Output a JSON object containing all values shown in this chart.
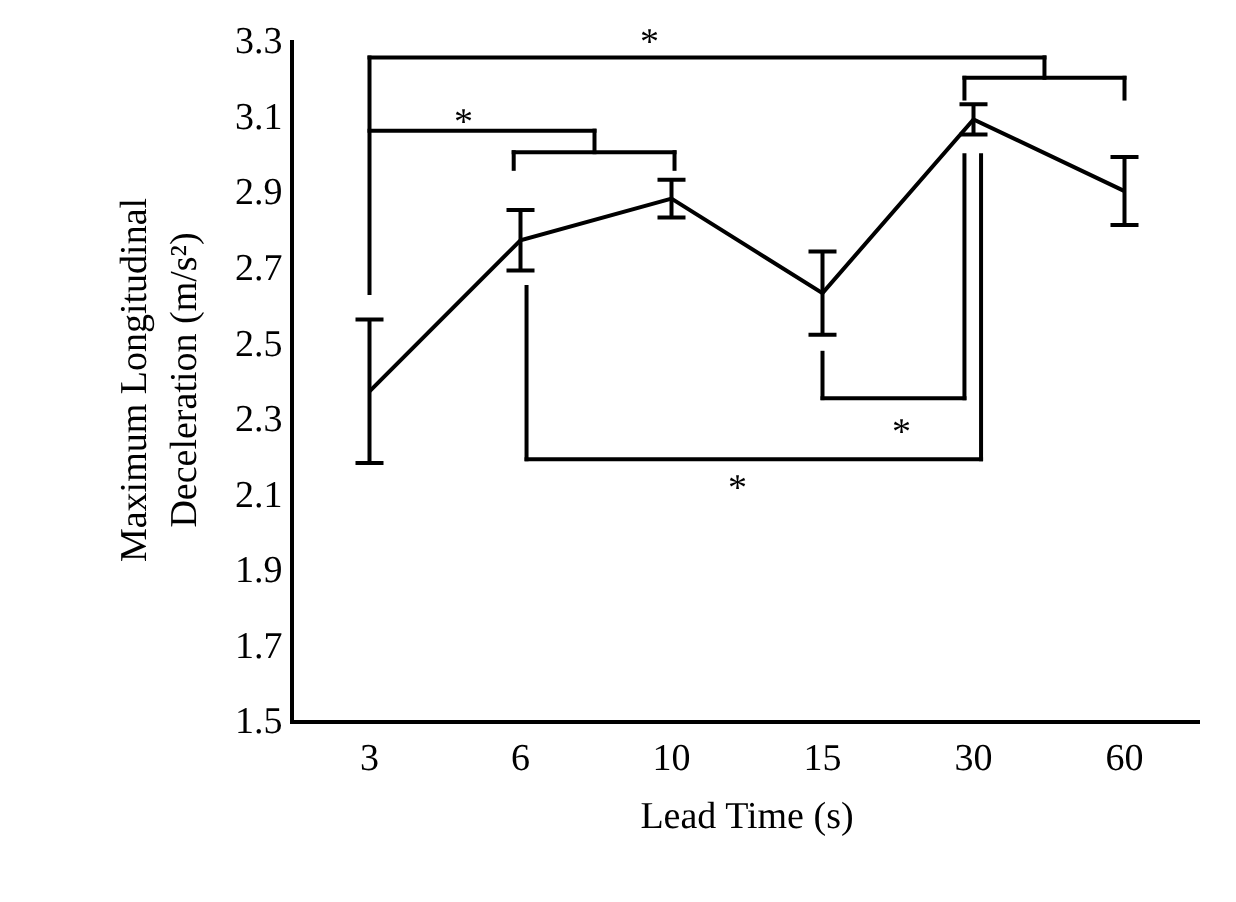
{
  "chart_data": {
    "type": "line",
    "xlabel": "Lead Time (s)",
    "ylabel": "Maximum Longitudinal Deceleration (m/s²)",
    "categories": [
      "3",
      "6",
      "10",
      "15",
      "30",
      "60"
    ],
    "series": [
      {
        "color": "#000000",
        "values": [
          2.37,
          2.77,
          2.88,
          2.63,
          3.09,
          2.9
        ],
        "errors": [
          0.19,
          0.08,
          0.05,
          0.11,
          0.04,
          0.09
        ]
      }
    ],
    "ylim": [
      1.5,
      3.3
    ],
    "yticks": [
      1.5,
      1.7,
      1.9,
      2.1,
      2.3,
      2.5,
      2.7,
      2.9,
      3.1,
      3.3
    ],
    "marker": "none",
    "line_style": "solid",
    "annotations": [
      "*",
      "*",
      "*",
      "*"
    ]
  }
}
